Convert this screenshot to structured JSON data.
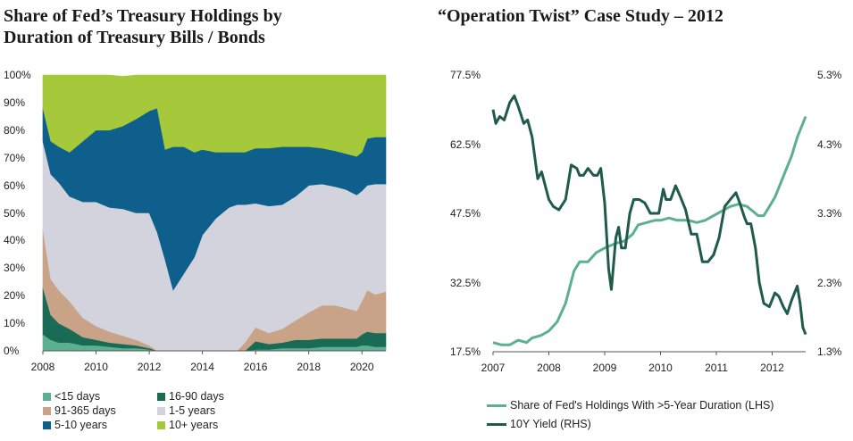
{
  "left": {
    "title_line1": "Share of Fed’s Treasury Holdings by",
    "title_line2": "Duration of Treasury Bills / Bonds",
    "chart_data": {
      "type": "area",
      "stacked": true,
      "title": "Share of Fed’s Treasury Holdings by Duration of Treasury Bills / Bonds",
      "x": [
        2008.0,
        2008.3,
        2008.6,
        2009.0,
        2009.5,
        2010.0,
        2010.5,
        2011.0,
        2011.5,
        2012.0,
        2012.3,
        2012.6,
        2012.9,
        2013.3,
        2013.7,
        2014.0,
        2014.5,
        2015.0,
        2015.3,
        2015.6,
        2016.0,
        2016.5,
        2017.0,
        2017.5,
        2018.0,
        2018.5,
        2019.0,
        2019.4,
        2019.8,
        2020.0,
        2020.2,
        2020.5,
        2020.9
      ],
      "ylim": [
        0,
        100
      ],
      "xlim": [
        2008,
        2020.9
      ],
      "series": [
        {
          "name": "<15 days",
          "color": "#5bb08f",
          "values": [
            6,
            4,
            3,
            3,
            2,
            2,
            1.5,
            1,
            1,
            0.5,
            0,
            0,
            0,
            0,
            0,
            0,
            0,
            0,
            0,
            0,
            0.5,
            0.5,
            1,
            1,
            1,
            1.5,
            1.5,
            1.5,
            1.5,
            2,
            2,
            1.5,
            1.5
          ]
        },
        {
          "name": "16-90 days",
          "color": "#1a6b55",
          "values": [
            17,
            9,
            7,
            5,
            3,
            2,
            1.5,
            1.5,
            1,
            0.5,
            0,
            0,
            0,
            0,
            0,
            0,
            0,
            0,
            0,
            0,
            3,
            2,
            2,
            3,
            3,
            3,
            3,
            3,
            3,
            4,
            5,
            5,
            5
          ]
        },
        {
          "name": "91-365 days",
          "color": "#c9a387",
          "values": [
            21,
            13,
            12,
            10,
            7,
            5,
            4,
            3,
            2,
            1,
            0,
            0,
            0,
            0,
            0,
            0,
            0,
            0,
            0,
            3,
            5,
            4,
            5,
            7,
            10,
            12,
            12,
            11,
            10,
            12,
            15,
            14,
            15
          ]
        },
        {
          "name": "1-5 years",
          "color": "#d2d3dd",
          "values": [
            32,
            38,
            39,
            38,
            42,
            45,
            45,
            46,
            46,
            48,
            43,
            33,
            22,
            28,
            34,
            42,
            48,
            52,
            53,
            50,
            45,
            46,
            45,
            45,
            46,
            44,
            43,
            43,
            42,
            40,
            38,
            40,
            39
          ]
        },
        {
          "name": "5-10 years",
          "color": "#0e5f8b",
          "values": [
            12,
            12,
            13,
            16,
            22,
            26,
            28,
            30,
            34,
            37,
            45,
            40,
            52,
            46,
            38,
            31,
            24,
            20,
            19,
            19,
            20,
            21,
            21,
            18,
            14,
            13,
            13,
            13,
            14,
            14,
            17,
            17,
            17
          ]
        },
        {
          "name": "10+ years",
          "color": "#a5c93a",
          "values": [
            12,
            24,
            26,
            28,
            24,
            20,
            20,
            18,
            16,
            13,
            12,
            27,
            26,
            26,
            28,
            27,
            28,
            28,
            28,
            28,
            26.5,
            26.5,
            26,
            26,
            26,
            26.5,
            27.5,
            28.5,
            29.5,
            28,
            23,
            22.5,
            22.5
          ]
        }
      ],
      "x_ticks": [
        "2008",
        "2010",
        "2012",
        "2014",
        "2016",
        "2018",
        "2020"
      ],
      "y_ticks": [
        "0%",
        "10%",
        "20%",
        "30%",
        "40%",
        "50%",
        "60%",
        "70%",
        "80%",
        "90%",
        "100%"
      ]
    },
    "legend": [
      "<15 days",
      "16-90 days",
      "91-365 days",
      "1-5 years",
      "5-10 years",
      "10+ years"
    ]
  },
  "right": {
    "title": "“Operation Twist” Case Study – 2012",
    "chart_data": {
      "type": "line",
      "title": "“Operation Twist” Case Study – 2012",
      "xlim": [
        2007,
        2012.6
      ],
      "y_left_lim": [
        17.5,
        77.5
      ],
      "y_right_lim": [
        1.3,
        5.3
      ],
      "y_left_ticks": [
        "17.5%",
        "32.5%",
        "47.5%",
        "62.5%",
        "77.5%"
      ],
      "y_right_ticks": [
        "1.3%",
        "2.3%",
        "3.3%",
        "4.3%",
        "5.3%"
      ],
      "x_ticks": [
        "2007",
        "2008",
        "2009",
        "2010",
        "2011",
        "2012"
      ],
      "series": [
        {
          "name": "Share of Fed's Holdings With >5-Year Duration (LHS)",
          "axis": "left",
          "color": "#5bb08f",
          "x": [
            2007.0,
            2007.15,
            2007.3,
            2007.45,
            2007.6,
            2007.7,
            2007.85,
            2008.0,
            2008.15,
            2008.3,
            2008.45,
            2008.55,
            2008.7,
            2008.85,
            2009.0,
            2009.2,
            2009.35,
            2009.5,
            2009.6,
            2009.75,
            2009.9,
            2010.0,
            2010.15,
            2010.3,
            2010.5,
            2010.65,
            2010.8,
            2010.95,
            2011.1,
            2011.25,
            2011.4,
            2011.55,
            2011.65,
            2011.75,
            2011.85,
            2011.95,
            2012.05,
            2012.15,
            2012.25,
            2012.35,
            2012.45,
            2012.6
          ],
          "values": [
            19.5,
            19,
            19,
            20,
            19.5,
            20.5,
            21,
            22,
            24,
            28,
            35,
            37,
            37,
            39,
            40,
            41,
            41.5,
            43,
            45,
            45.5,
            46,
            46,
            46.5,
            46,
            46,
            45.5,
            46,
            47,
            48,
            49,
            49.5,
            49,
            48,
            47,
            47,
            49,
            51,
            54,
            57,
            60,
            64,
            68.5
          ]
        },
        {
          "name": "10Y Yield (RHS)",
          "axis": "right",
          "color": "#1f5a4b",
          "x": [
            2007.0,
            2007.05,
            2007.12,
            2007.2,
            2007.3,
            2007.38,
            2007.45,
            2007.55,
            2007.62,
            2007.7,
            2007.8,
            2007.87,
            2008.0,
            2008.08,
            2008.18,
            2008.3,
            2008.4,
            2008.5,
            2008.55,
            2008.62,
            2008.7,
            2008.8,
            2008.87,
            2008.93,
            2009.0,
            2009.07,
            2009.12,
            2009.2,
            2009.25,
            2009.3,
            2009.37,
            2009.45,
            2009.52,
            2009.62,
            2009.72,
            2009.82,
            2009.9,
            2009.97,
            2010.05,
            2010.1,
            2010.18,
            2010.27,
            2010.35,
            2010.45,
            2010.55,
            2010.65,
            2010.75,
            2010.85,
            2010.95,
            2011.05,
            2011.15,
            2011.25,
            2011.35,
            2011.42,
            2011.5,
            2011.55,
            2011.62,
            2011.7,
            2011.77,
            2011.85,
            2011.95,
            2012.05,
            2012.12,
            2012.2,
            2012.27,
            2012.35,
            2012.45,
            2012.5,
            2012.55,
            2012.6
          ],
          "values": [
            4.8,
            4.6,
            4.7,
            4.65,
            4.9,
            5.0,
            4.85,
            4.6,
            4.65,
            4.4,
            3.8,
            3.9,
            3.5,
            3.4,
            3.35,
            3.5,
            4.0,
            3.95,
            3.85,
            3.85,
            3.95,
            3.85,
            3.85,
            3.95,
            3.45,
            2.5,
            2.2,
            2.95,
            3.1,
            2.8,
            2.8,
            3.3,
            3.5,
            3.5,
            3.45,
            3.3,
            3.3,
            3.3,
            3.65,
            3.5,
            3.5,
            3.7,
            3.55,
            3.35,
            3.0,
            3.0,
            2.6,
            2.6,
            2.7,
            2.95,
            3.4,
            3.5,
            3.6,
            3.45,
            3.25,
            3.15,
            3.15,
            2.8,
            2.3,
            2.0,
            1.95,
            2.15,
            2.1,
            1.95,
            1.85,
            2.05,
            2.25,
            2.0,
            1.65,
            1.55
          ]
        }
      ],
      "legend_position": "bottom"
    },
    "legend": [
      "Share of Fed's Holdings With >5-Year Duration (LHS)",
      "10Y Yield (RHS)"
    ]
  }
}
